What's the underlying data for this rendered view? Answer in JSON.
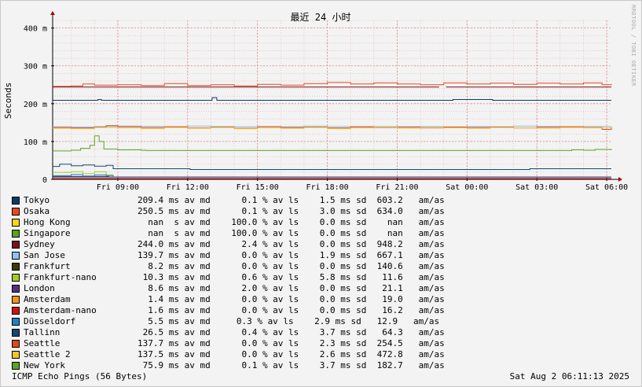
{
  "footer": {
    "title": "ICMP Echo Pings (56 Bytes)",
    "date": "Sat Aug  2 06:11:13 2025"
  },
  "vendor": "RRDTOOL / TOBI OETIKER",
  "chart_data": {
    "type": "line",
    "title": "最近 24 小时",
    "ylabel": "Seconds",
    "xlabel": "",
    "y_unit": "seconds",
    "ylim": [
      0,
      0.42
    ],
    "y_ticks": [
      {
        "v": 0,
        "label": "0"
      },
      {
        "v": 0.1,
        "label": "100 m"
      },
      {
        "v": 0.2,
        "label": "200 m"
      },
      {
        "v": 0.3,
        "label": "300 m"
      },
      {
        "v": 0.4,
        "label": "400 m"
      }
    ],
    "x_ticks": [
      "Fri 09:00",
      "Fri 12:00",
      "Fri 15:00",
      "Fri 18:00",
      "Fri 21:00",
      "Sat 00:00",
      "Sat 03:00",
      "Sat 06:00"
    ],
    "x_tick_hours": [
      9,
      12,
      15,
      18,
      21,
      24,
      27,
      30
    ],
    "x_range_hours": [
      6.2,
      30.2
    ],
    "grid": true,
    "series": [
      {
        "name": "Tokyo",
        "color": "#0A3A6B",
        "stats": "209.4 ms av md      0.1 % av ls    1.5 ms sd  603.2   am/as",
        "points": [
          [
            6.2,
            0.209
          ],
          [
            8.0,
            0.209
          ],
          [
            8.15,
            0.211
          ],
          [
            8.3,
            0.209
          ],
          [
            13.0,
            0.209
          ],
          [
            13.05,
            0.216
          ],
          [
            13.25,
            0.209
          ],
          [
            23.3,
            0.209
          ],
          [
            23.4,
            0.211
          ],
          [
            25.0,
            0.211
          ],
          [
            25.1,
            0.209
          ],
          [
            30.2,
            0.209
          ]
        ]
      },
      {
        "name": "Osaka",
        "color": "#E8491C",
        "stats": "250.5 ms av md      0.1 % av ls    3.0 ms sd  634.0   am/as",
        "points": [
          [
            6.2,
            0.246
          ],
          [
            7.0,
            0.247
          ],
          [
            7.5,
            0.252
          ],
          [
            8.0,
            0.249
          ],
          [
            9.0,
            0.25
          ],
          [
            10.0,
            0.248
          ],
          [
            11.0,
            0.253
          ],
          [
            12.0,
            0.248
          ],
          [
            13.0,
            0.25
          ],
          [
            14.0,
            0.247
          ],
          [
            15.0,
            0.251
          ],
          [
            16.0,
            0.249
          ],
          [
            17.0,
            0.253
          ],
          [
            18.0,
            0.256
          ],
          [
            19.0,
            0.252
          ],
          [
            20.0,
            0.255
          ],
          [
            21.0,
            0.252
          ],
          [
            22.0,
            0.25
          ],
          [
            23.0,
            0.255
          ],
          [
            24.0,
            0.252
          ],
          [
            25.0,
            0.254
          ],
          [
            26.0,
            0.251
          ],
          [
            27.0,
            0.254
          ],
          [
            28.0,
            0.252
          ],
          [
            29.0,
            0.255
          ],
          [
            29.8,
            0.25
          ],
          [
            30.2,
            0.252
          ]
        ]
      },
      {
        "name": "Hong Kong",
        "color": "#FFD21A",
        "stats": "  nan  s av md    100.0 % av ls    0.0 ms sd    nan   am/as",
        "points": []
      },
      {
        "name": "Singapore",
        "color": "#57A21F",
        "stats": "  nan  s av md    100.0 % av ls    0.0 ms sd    nan   am/as",
        "points": []
      },
      {
        "name": "Sydney",
        "color": "#7D0F1B",
        "stats": "244.0 ms av md      2.4 % av ls    0.0 ms sd  948.2   am/as",
        "points": [
          [
            6.2,
            0.244
          ],
          [
            22.8,
            0.244
          ],
          [
            null,
            null
          ],
          [
            23.1,
            0.244
          ],
          [
            30.2,
            0.244
          ]
        ]
      },
      {
        "name": "San Jose",
        "color": "#8CC3F2",
        "stats": "139.7 ms av md      0.0 % av ls    1.9 ms sd  667.1   am/as",
        "points": [
          [
            6.2,
            0.139
          ],
          [
            7.0,
            0.138
          ],
          [
            8.0,
            0.14
          ],
          [
            9.0,
            0.141
          ],
          [
            10.0,
            0.14
          ],
          [
            11.0,
            0.138
          ],
          [
            12.0,
            0.141
          ],
          [
            13.0,
            0.14
          ],
          [
            14.0,
            0.139
          ],
          [
            15.0,
            0.14
          ],
          [
            16.0,
            0.139
          ],
          [
            17.0,
            0.141
          ],
          [
            18.0,
            0.14
          ],
          [
            19.0,
            0.138
          ],
          [
            20.0,
            0.14
          ],
          [
            21.0,
            0.139
          ],
          [
            22.0,
            0.14
          ],
          [
            23.0,
            0.138
          ],
          [
            24.0,
            0.14
          ],
          [
            25.0,
            0.139
          ],
          [
            26.0,
            0.141
          ],
          [
            27.0,
            0.14
          ],
          [
            28.0,
            0.139
          ],
          [
            29.0,
            0.14
          ],
          [
            30.2,
            0.14
          ]
        ]
      },
      {
        "name": "Frankfurt",
        "color": "#3A3A0C",
        "stats": "  8.2 ms av md      0.0 % av ls    0.0 ms sd  140.6   am/as",
        "points": [
          [
            6.2,
            0.008
          ],
          [
            8.6,
            0.008
          ],
          [
            8.6,
            0.006
          ],
          [
            30.2,
            0.006
          ]
        ]
      },
      {
        "name": "Frankfurt-nano",
        "color": "#A8CC22",
        "stats": " 10.3 ms av md      0.6 % av ls    5.8 ms sd   11.6   am/as",
        "points": [
          [
            6.2,
            0.018
          ],
          [
            7.0,
            0.02
          ],
          [
            7.5,
            0.015
          ],
          [
            8.0,
            0.02
          ],
          [
            8.5,
            0.012
          ],
          [
            8.8,
            0.008
          ]
        ]
      },
      {
        "name": "London",
        "color": "#52308A",
        "stats": "  8.6 ms av md      2.0 % av ls    0.0 ms sd   21.1   am/as",
        "points": [
          [
            6.2,
            0.006
          ],
          [
            30.2,
            0.006
          ]
        ]
      },
      {
        "name": "Amsterdam",
        "color": "#F2931C",
        "stats": "  1.4 ms av md      0.0 % av ls    0.0 ms sd   19.0   am/as",
        "points": [
          [
            6.2,
            0.002
          ],
          [
            30.2,
            0.002
          ]
        ]
      },
      {
        "name": "Amsterdam-nano",
        "color": "#CC1414",
        "stats": "  1.6 ms av md      0.0 % av ls    0.0 ms sd   16.2   am/as",
        "points": [
          [
            6.2,
            0.002
          ],
          [
            30.2,
            0.002
          ]
        ]
      },
      {
        "name": "Düsseldorf",
        "color": "#1F82C8",
        "stats": "  5.5 ms av md     0.3 % av ls    2.9 ms sd   12.9   am/as",
        "points": [
          [
            6.2,
            0.01
          ],
          [
            7.0,
            0.013
          ],
          [
            7.5,
            0.009
          ],
          [
            8.0,
            0.012
          ],
          [
            8.5,
            0.01
          ],
          [
            8.8,
            0.005
          ]
        ]
      },
      {
        "name": "Tallinn",
        "color": "#0E4A7A",
        "stats": " 26.5 ms av md      0.4 % av ls    3.7 ms sd   64.3   am/as",
        "points": [
          [
            6.2,
            0.034
          ],
          [
            6.5,
            0.04
          ],
          [
            7.0,
            0.036
          ],
          [
            7.5,
            0.038
          ],
          [
            8.0,
            0.035
          ],
          [
            8.5,
            0.037
          ],
          [
            8.8,
            0.028
          ],
          [
            9.0,
            0.028
          ],
          [
            12.0,
            0.028
          ],
          [
            12.1,
            0.026
          ],
          [
            26.6,
            0.026
          ],
          [
            26.7,
            0.028
          ],
          [
            30.2,
            0.028
          ]
        ]
      },
      {
        "name": "Seattle",
        "color": "#E04A1A",
        "stats": "137.7 ms av md      0.0 % av ls    2.3 ms sd  254.5   am/as",
        "points": [
          [
            6.2,
            0.137
          ],
          [
            7.0,
            0.136
          ],
          [
            8.0,
            0.138
          ],
          [
            8.5,
            0.142
          ],
          [
            9.0,
            0.139
          ],
          [
            10.0,
            0.137
          ],
          [
            11.0,
            0.139
          ],
          [
            12.0,
            0.136
          ],
          [
            13.0,
            0.138
          ],
          [
            14.0,
            0.135
          ],
          [
            15.0,
            0.139
          ],
          [
            16.0,
            0.137
          ],
          [
            17.0,
            0.138
          ],
          [
            18.0,
            0.136
          ],
          [
            19.0,
            0.139
          ],
          [
            20.0,
            0.137
          ],
          [
            21.0,
            0.138
          ],
          [
            22.0,
            0.136
          ],
          [
            23.0,
            0.138
          ],
          [
            24.0,
            0.137
          ],
          [
            25.0,
            0.138
          ],
          [
            26.0,
            0.136
          ],
          [
            27.0,
            0.138
          ],
          [
            28.0,
            0.139
          ],
          [
            29.0,
            0.137
          ],
          [
            29.8,
            0.132
          ],
          [
            30.2,
            0.138
          ]
        ]
      },
      {
        "name": "Seattle 2",
        "color": "#F6C42A",
        "stats": "137.5 ms av md      0.0 % av ls    2.6 ms sd  472.8   am/as",
        "points": [
          [
            6.2,
            0.135
          ],
          [
            7.0,
            0.134
          ],
          [
            8.0,
            0.137
          ],
          [
            9.0,
            0.136
          ],
          [
            10.0,
            0.134
          ],
          [
            11.0,
            0.137
          ],
          [
            12.0,
            0.135
          ],
          [
            13.0,
            0.137
          ],
          [
            14.0,
            0.134
          ],
          [
            15.0,
            0.136
          ],
          [
            16.0,
            0.135
          ],
          [
            17.0,
            0.137
          ],
          [
            18.0,
            0.134
          ],
          [
            19.0,
            0.136
          ],
          [
            20.0,
            0.138
          ],
          [
            21.0,
            0.135
          ],
          [
            22.0,
            0.137
          ],
          [
            23.0,
            0.136
          ],
          [
            24.0,
            0.135
          ],
          [
            25.0,
            0.137
          ],
          [
            26.0,
            0.136
          ],
          [
            27.0,
            0.135
          ],
          [
            28.0,
            0.137
          ],
          [
            29.0,
            0.136
          ],
          [
            30.2,
            0.136
          ]
        ]
      },
      {
        "name": "New York",
        "color": "#5DA22A",
        "stats": " 75.9 ms av md      0.1 % av ls    3.7 ms sd  182.7   am/as",
        "points": [
          [
            6.2,
            0.075
          ],
          [
            7.0,
            0.077
          ],
          [
            7.4,
            0.082
          ],
          [
            7.8,
            0.09
          ],
          [
            8.0,
            0.115
          ],
          [
            8.2,
            0.1
          ],
          [
            8.4,
            0.08
          ],
          [
            9.0,
            0.078
          ],
          [
            10.0,
            0.077
          ],
          [
            10.2,
            0.076
          ],
          [
            28.0,
            0.076
          ],
          [
            28.5,
            0.078
          ],
          [
            29.0,
            0.077
          ],
          [
            29.5,
            0.079
          ],
          [
            30.2,
            0.077
          ]
        ]
      }
    ]
  }
}
